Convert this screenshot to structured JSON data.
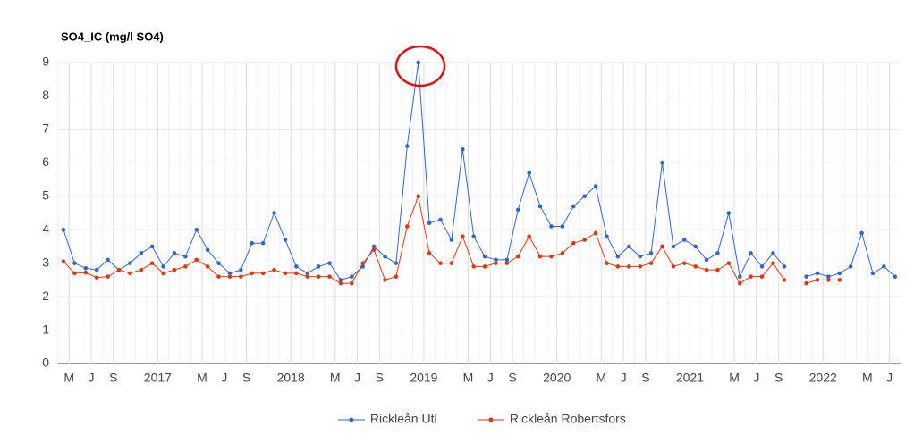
{
  "chart_data": {
    "type": "line",
    "title": "SO4_IC (mg/l SO4)",
    "categories": [
      "2016-04",
      "2016-05",
      "2016-06",
      "2016-07",
      "2016-08",
      "2016-09",
      "2016-10",
      "2016-11",
      "2016-12",
      "2017-01",
      "2017-02",
      "2017-03",
      "2017-04",
      "2017-05",
      "2017-06",
      "2017-07",
      "2017-08",
      "2017-09",
      "2017-10",
      "2017-11",
      "2017-12",
      "2018-01",
      "2018-02",
      "2018-03",
      "2018-04",
      "2018-05",
      "2018-06",
      "2018-07",
      "2018-08",
      "2018-09",
      "2018-10",
      "2018-11",
      "2018-12",
      "2019-01",
      "2019-02",
      "2019-03",
      "2019-04",
      "2019-05",
      "2019-06",
      "2019-07",
      "2019-08",
      "2019-09",
      "2019-10",
      "2019-11",
      "2019-12",
      "2020-01",
      "2020-02",
      "2020-03",
      "2020-04",
      "2020-05",
      "2020-06",
      "2020-07",
      "2020-08",
      "2020-09",
      "2020-10",
      "2020-11",
      "2020-12",
      "2021-01",
      "2021-02",
      "2021-03",
      "2021-04",
      "2021-05",
      "2021-06",
      "2021-07",
      "2021-08",
      "2021-09",
      "2021-10",
      "2021-11",
      "2021-12",
      "2022-01",
      "2022-02",
      "2022-03",
      "2022-04",
      "2022-05",
      "2022-06",
      "2022-07"
    ],
    "series": [
      {
        "name": "Rickleån Utl",
        "color": "#3366cc",
        "values": [
          4.0,
          3.0,
          2.85,
          2.8,
          3.1,
          2.8,
          3.0,
          3.3,
          3.5,
          2.9,
          3.3,
          3.2,
          4.0,
          3.4,
          3.0,
          2.7,
          2.8,
          3.6,
          3.6,
          4.5,
          3.7,
          2.9,
          2.7,
          2.9,
          3.0,
          2.5,
          2.6,
          2.9,
          3.5,
          3.2,
          3.0,
          6.5,
          9.0,
          4.2,
          4.3,
          3.7,
          6.4,
          3.8,
          3.2,
          3.1,
          3.1,
          4.6,
          5.7,
          4.7,
          4.1,
          4.1,
          4.7,
          5.0,
          5.3,
          3.8,
          3.2,
          3.5,
          3.2,
          3.3,
          6.0,
          3.5,
          3.7,
          3.5,
          3.1,
          3.3,
          4.5,
          2.6,
          3.3,
          2.9,
          3.3,
          2.9,
          null,
          2.6,
          2.7,
          2.6,
          2.7,
          2.9,
          3.9,
          2.7,
          2.9,
          2.6
        ]
      },
      {
        "name": "Rickleån Robertsfors",
        "color": "#dc3912",
        "values": [
          3.05,
          2.7,
          2.72,
          2.57,
          2.6,
          2.8,
          2.7,
          2.8,
          3.0,
          2.7,
          2.8,
          2.9,
          3.1,
          2.9,
          2.6,
          2.6,
          2.6,
          2.7,
          2.7,
          2.8,
          2.7,
          2.7,
          2.6,
          2.6,
          2.6,
          2.4,
          2.4,
          3.0,
          3.4,
          2.5,
          2.6,
          4.1,
          5.0,
          3.3,
          3.0,
          3.0,
          3.8,
          2.9,
          2.9,
          3.0,
          3.0,
          3.2,
          3.8,
          3.2,
          3.2,
          3.3,
          3.6,
          3.7,
          3.9,
          3.0,
          2.9,
          2.9,
          2.9,
          3.0,
          3.5,
          2.9,
          3.0,
          2.9,
          2.8,
          2.8,
          3.0,
          2.4,
          2.6,
          2.6,
          3.0,
          2.5,
          null,
          2.4,
          2.5,
          2.5,
          2.5,
          null,
          null,
          null,
          null,
          null
        ]
      }
    ],
    "ylim": [
      0,
      9
    ],
    "yticks": [
      0,
      1,
      2,
      3,
      4,
      5,
      6,
      7,
      8,
      9
    ],
    "xticks": [
      {
        "value": "2016-05",
        "label": "M"
      },
      {
        "value": "2016-07",
        "label": "J"
      },
      {
        "value": "2016-09",
        "label": "S"
      },
      {
        "value": "2017-01",
        "label": "2017"
      },
      {
        "value": "2017-05",
        "label": "M"
      },
      {
        "value": "2017-07",
        "label": "J"
      },
      {
        "value": "2017-09",
        "label": "S"
      },
      {
        "value": "2018-01",
        "label": "2018"
      },
      {
        "value": "2018-05",
        "label": "M"
      },
      {
        "value": "2018-07",
        "label": "J"
      },
      {
        "value": "2018-09",
        "label": "S"
      },
      {
        "value": "2019-01",
        "label": "2019"
      },
      {
        "value": "2019-05",
        "label": "M"
      },
      {
        "value": "2019-07",
        "label": "J"
      },
      {
        "value": "2019-09",
        "label": "S"
      },
      {
        "value": "2020-01",
        "label": "2020"
      },
      {
        "value": "2020-05",
        "label": "M"
      },
      {
        "value": "2020-07",
        "label": "J"
      },
      {
        "value": "2020-09",
        "label": "S"
      },
      {
        "value": "2021-01",
        "label": "2021"
      },
      {
        "value": "2021-05",
        "label": "M"
      },
      {
        "value": "2021-07",
        "label": "J"
      },
      {
        "value": "2021-09",
        "label": "S"
      },
      {
        "value": "2022-01",
        "label": "2022"
      },
      {
        "value": "2022-05",
        "label": "M"
      },
      {
        "value": "2022-07",
        "label": "J"
      }
    ],
    "grid": true,
    "legend": "bottom"
  }
}
